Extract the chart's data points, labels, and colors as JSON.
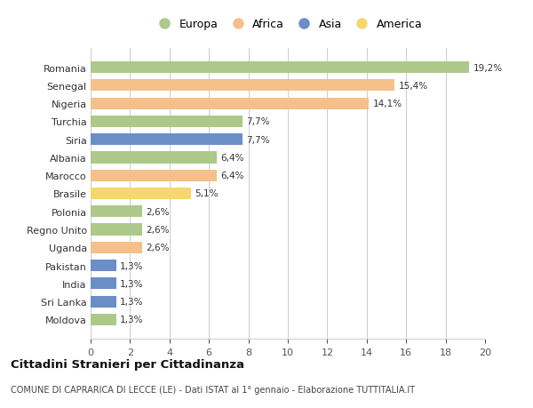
{
  "countries": [
    "Romania",
    "Senegal",
    "Nigeria",
    "Turchia",
    "Siria",
    "Albania",
    "Marocco",
    "Brasile",
    "Polonia",
    "Regno Unito",
    "Uganda",
    "Pakistan",
    "India",
    "Sri Lanka",
    "Moldova"
  ],
  "values": [
    19.2,
    15.4,
    14.1,
    7.7,
    7.7,
    6.4,
    6.4,
    5.1,
    2.6,
    2.6,
    2.6,
    1.3,
    1.3,
    1.3,
    1.3
  ],
  "labels": [
    "19,2%",
    "15,4%",
    "14,1%",
    "7,7%",
    "7,7%",
    "6,4%",
    "6,4%",
    "5,1%",
    "2,6%",
    "2,6%",
    "2,6%",
    "1,3%",
    "1,3%",
    "1,3%",
    "1,3%"
  ],
  "continents": [
    "Europa",
    "Africa",
    "Africa",
    "Europa",
    "Asia",
    "Europa",
    "Africa",
    "America",
    "Europa",
    "Europa",
    "Africa",
    "Asia",
    "Asia",
    "Asia",
    "Europa"
  ],
  "colors": {
    "Europa": "#adc98a",
    "Africa": "#f5c08a",
    "Asia": "#6b8ec7",
    "America": "#f5d76e"
  },
  "legend_order": [
    "Europa",
    "Africa",
    "Asia",
    "America"
  ],
  "title": "Cittadini Stranieri per Cittadinanza",
  "subtitle": "COMUNE DI CAPRARICA DI LECCE (LE) - Dati ISTAT al 1° gennaio - Elaborazione TUTTITALIA.IT",
  "xlim": [
    0,
    20
  ],
  "xticks": [
    0,
    2,
    4,
    6,
    8,
    10,
    12,
    14,
    16,
    18,
    20
  ],
  "background_color": "#ffffff",
  "bar_height": 0.65
}
